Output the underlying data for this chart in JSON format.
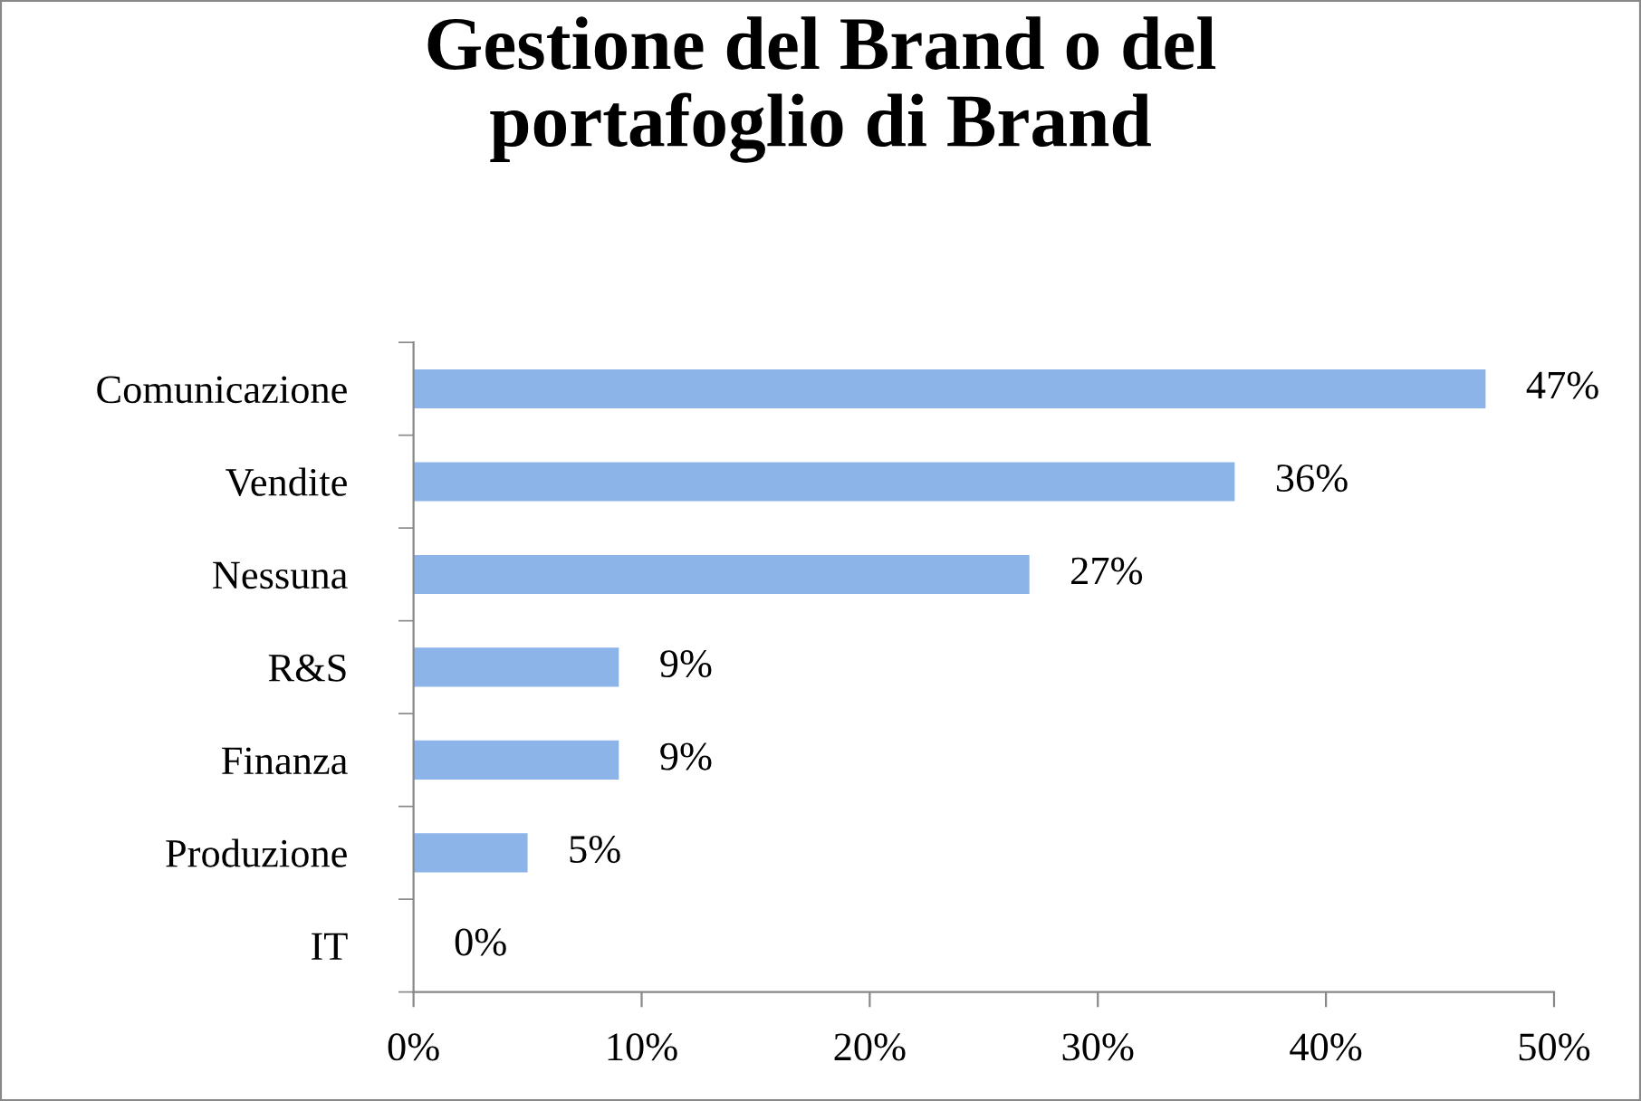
{
  "chart_data": {
    "type": "bar",
    "orientation": "horizontal",
    "title": "Gestione del Brand o del\nportafoglio di Brand",
    "categories": [
      "Comunicazione",
      "Vendite",
      "Nessuna",
      "R&S",
      "Finanza",
      "Produzione",
      "IT"
    ],
    "values": [
      47,
      36,
      27,
      9,
      9,
      5,
      0
    ],
    "value_labels": [
      "47%",
      "36%",
      "27%",
      "9%",
      "9%",
      "5%",
      "0%"
    ],
    "color": "#8db4e8",
    "xlim": [
      0,
      50
    ],
    "xticks": [
      {
        "value": 0,
        "label": "0%"
      },
      {
        "value": 10,
        "label": "10%"
      },
      {
        "value": 20,
        "label": "20%"
      },
      {
        "value": 30,
        "label": "30%"
      },
      {
        "value": 40,
        "label": "40%"
      },
      {
        "value": 50,
        "label": "50%"
      }
    ],
    "grid": false,
    "legend": false
  }
}
